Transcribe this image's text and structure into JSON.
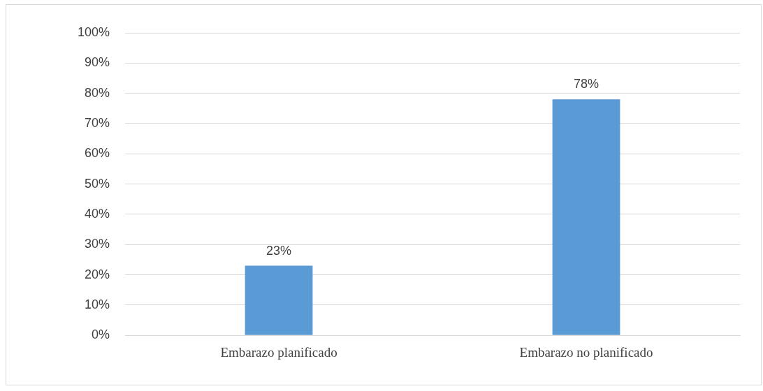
{
  "chart_data": {
    "type": "bar",
    "categories": [
      "Embarazo planificado",
      "Embarazo no planificado"
    ],
    "values": [
      23,
      78
    ],
    "color": "#5b9bd5",
    "value_labels": [
      "23%",
      "78%"
    ],
    "ylim": [
      0,
      100
    ],
    "yticks": [
      {
        "value": 0,
        "label": "0%"
      },
      {
        "value": 10,
        "label": "10%"
      },
      {
        "value": 20,
        "label": "20%"
      },
      {
        "value": 30,
        "label": "30%"
      },
      {
        "value": 40,
        "label": "40%"
      },
      {
        "value": 50,
        "label": "50%"
      },
      {
        "value": 60,
        "label": "60%"
      },
      {
        "value": 70,
        "label": "70%"
      },
      {
        "value": 80,
        "label": "80%"
      },
      {
        "value": 90,
        "label": "90%"
      },
      {
        "value": 100,
        "label": "100%"
      }
    ],
    "grid": "y",
    "legend": false
  }
}
